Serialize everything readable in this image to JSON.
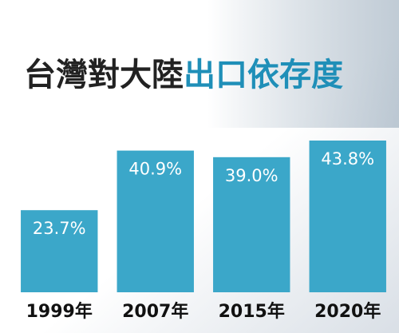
{
  "chart_data": {
    "type": "bar",
    "title": [
      "台灣對大陸",
      "出口依存度"
    ],
    "categories": [
      "1999年",
      "2007年",
      "2015年",
      "2020年"
    ],
    "values": [
      23.7,
      40.9,
      39.0,
      43.8
    ],
    "value_labels": [
      "23.7%",
      "40.9%",
      "39.0%",
      "43.8%"
    ],
    "color": "#3ba7c9"
  }
}
